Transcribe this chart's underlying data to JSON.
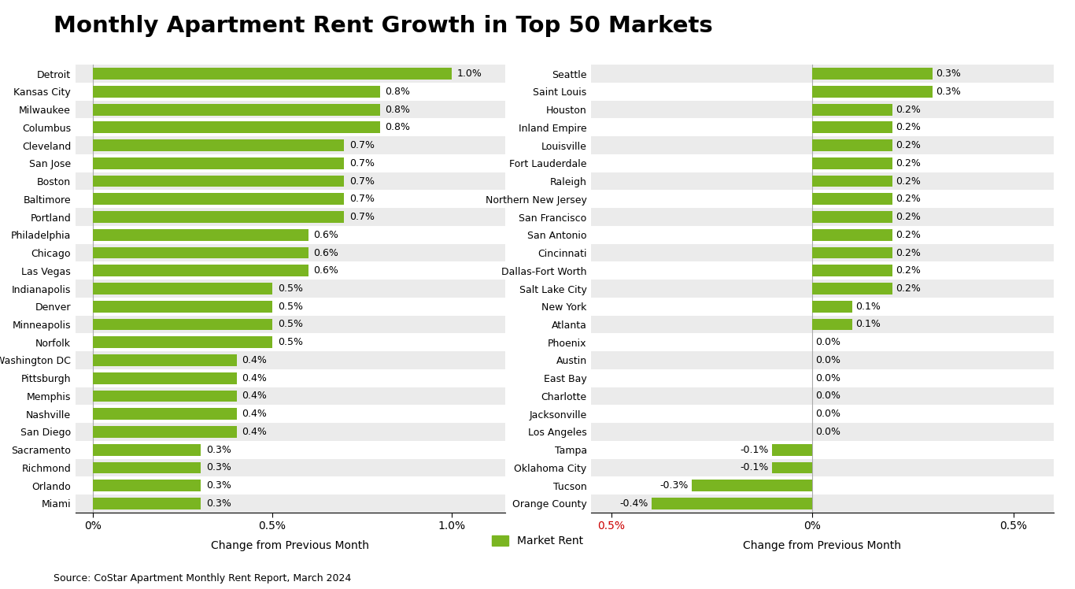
{
  "title": "Monthly Apartment Rent Growth in Top 50 Markets",
  "bar_color": "#7ab521",
  "bg_color": "#ffffff",
  "stripe_color": "#ebebeb",
  "source_text": "Source: CoStar Apartment Monthly Rent Report, March 2024",
  "legend_label": "Market Rent",
  "left_chart": {
    "cities": [
      "Detroit",
      "Kansas City",
      "Milwaukee",
      "Columbus",
      "Cleveland",
      "San Jose",
      "Boston",
      "Baltimore",
      "Portland",
      "Philadelphia",
      "Chicago",
      "Las Vegas",
      "Indianapolis",
      "Denver",
      "Minneapolis",
      "Norfolk",
      "Washington DC",
      "Pittsburgh",
      "Memphis",
      "Nashville",
      "San Diego",
      "Sacramento",
      "Richmond",
      "Orlando",
      "Miami"
    ],
    "values": [
      1.0,
      0.8,
      0.8,
      0.8,
      0.7,
      0.7,
      0.7,
      0.7,
      0.7,
      0.6,
      0.6,
      0.6,
      0.5,
      0.5,
      0.5,
      0.5,
      0.4,
      0.4,
      0.4,
      0.4,
      0.4,
      0.3,
      0.3,
      0.3,
      0.3
    ],
    "xlabel": "Change from Previous Month",
    "xlim_min": -0.05,
    "xlim_max": 1.15,
    "xticks": [
      0.0,
      0.5,
      1.0
    ],
    "xticklabels": [
      "0%",
      "0.5%",
      "1.0%"
    ]
  },
  "right_chart": {
    "cities": [
      "Seattle",
      "Saint Louis",
      "Houston",
      "Inland Empire",
      "Louisville",
      "Fort Lauderdale",
      "Raleigh",
      "Northern New Jersey",
      "San Francisco",
      "San Antonio",
      "Cincinnati",
      "Dallas-Fort Worth",
      "Salt Lake City",
      "New York",
      "Atlanta",
      "Phoenix",
      "Austin",
      "East Bay",
      "Charlotte",
      "Jacksonville",
      "Los Angeles",
      "Tampa",
      "Oklahoma City",
      "Tucson",
      "Orange County"
    ],
    "values": [
      0.3,
      0.3,
      0.2,
      0.2,
      0.2,
      0.2,
      0.2,
      0.2,
      0.2,
      0.2,
      0.2,
      0.2,
      0.2,
      0.1,
      0.1,
      0.0,
      0.0,
      0.0,
      0.0,
      0.0,
      0.0,
      -0.1,
      -0.1,
      -0.3,
      -0.4
    ],
    "xlabel": "Change from Previous Month",
    "xlim_min": -0.55,
    "xlim_max": 0.6,
    "xticks": [
      -0.5,
      0.0,
      0.5
    ],
    "xticklabels": [
      "0.5%",
      "0%",
      "0.5%"
    ],
    "xticklabel_colors": [
      "#cc0000",
      "#000000",
      "#000000"
    ]
  }
}
